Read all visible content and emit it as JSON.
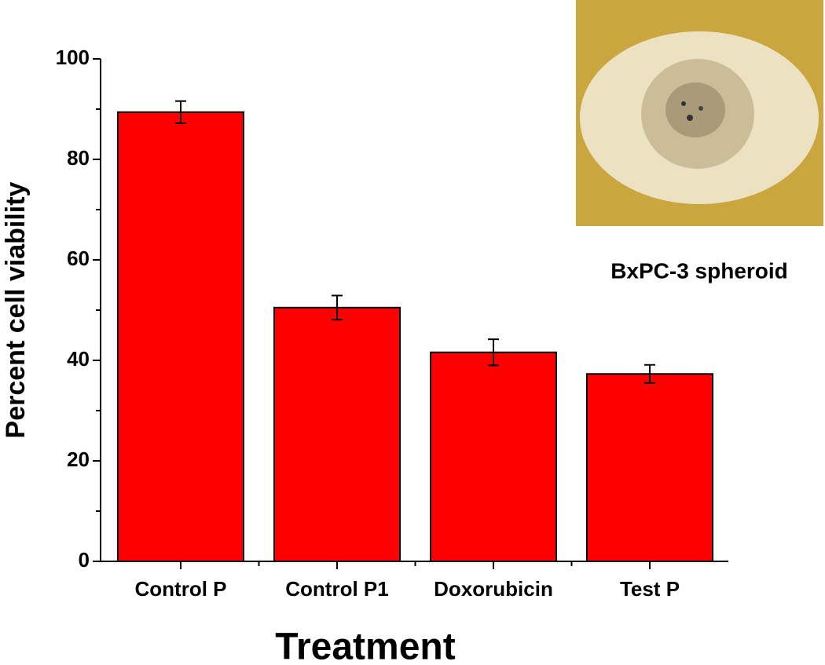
{
  "chart_data": {
    "type": "bar",
    "x_label": "Treatment",
    "y_label": "Percent cell viability",
    "annotation": "BxPC-3 spheroid",
    "categories": [
      "Control P",
      "Control P1",
      "Doxorubicin",
      "Test P"
    ],
    "values": [
      89.4,
      50.5,
      41.6,
      37.3
    ],
    "errors": [
      2.2,
      2.4,
      2.6,
      1.8
    ],
    "color": "#ff0000",
    "ylim": [
      0,
      100
    ],
    "yticks": [
      0,
      20,
      40,
      60,
      80,
      100
    ],
    "grid": false
  }
}
